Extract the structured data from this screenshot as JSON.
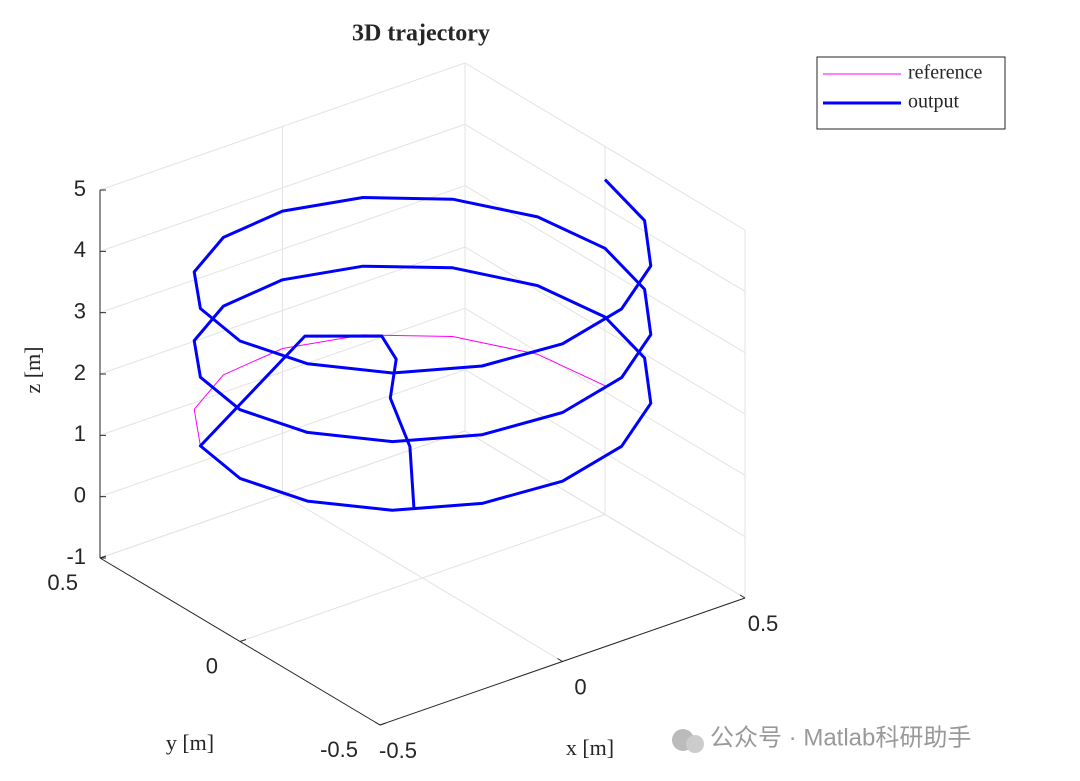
{
  "chart_data": {
    "type": "line3d",
    "title": "3D trajectory",
    "xlabel": "x [m]",
    "ylabel": "y [m]",
    "zlabel": "z [m]",
    "xlim": [
      -0.5,
      0.5
    ],
    "ylim": [
      -0.5,
      0.5
    ],
    "zlim": [
      -1,
      5
    ],
    "xticks": [
      -0.5,
      0,
      0.5
    ],
    "yticks": [
      -0.5,
      0,
      0.5
    ],
    "zticks": [
      -1,
      0,
      1,
      2,
      3,
      4,
      5
    ],
    "grid": true,
    "legend": "upper right",
    "series": [
      {
        "name": "reference",
        "color": "#ff00ff",
        "linewidth": 1,
        "x": [
          0.5,
          0.462,
          0.354,
          0.191,
          0,
          -0.191,
          -0.354,
          -0.462,
          -0.5,
          -0.462,
          -0.354,
          -0.191,
          0,
          0.191,
          0.354,
          0.462,
          0.5,
          0.462,
          0.354,
          0.191,
          0,
          -0.191,
          -0.354,
          -0.462,
          -0.5,
          -0.462,
          -0.354,
          -0.191,
          0,
          0.191,
          0.354,
          0.462,
          0.5,
          0.462,
          0.354,
          0.191,
          0,
          -0.191,
          -0.354,
          -0.462,
          -0.5,
          -0.462,
          -0.354,
          -0.191,
          0,
          0.191,
          0.354,
          0.462,
          0.5
        ],
        "y": [
          0,
          0.191,
          0.354,
          0.462,
          0.5,
          0.462,
          0.354,
          0.191,
          0,
          -0.191,
          -0.354,
          -0.462,
          -0.5,
          -0.462,
          -0.354,
          -0.191,
          0,
          0.191,
          0.354,
          0.462,
          0.5,
          0.462,
          0.354,
          0.191,
          0,
          -0.191,
          -0.354,
          -0.462,
          -0.5,
          -0.462,
          -0.354,
          -0.191,
          0,
          0.191,
          0.354,
          0.462,
          0.5,
          0.462,
          0.354,
          0.191,
          0,
          -0.191,
          -0.354,
          -0.462,
          -0.5,
          -0.462,
          -0.354,
          -0.191,
          0
        ],
        "z": [
          1.1,
          1.17,
          1.24,
          1.31,
          1.38,
          1.45,
          1.52,
          1.59,
          1.66,
          1.73,
          1.8,
          1.87,
          1.94,
          2.01,
          2.08,
          2.15,
          2.22,
          2.29,
          2.36,
          2.43,
          2.5,
          2.57,
          2.64,
          2.71,
          2.78,
          2.85,
          2.92,
          2.99,
          3.06,
          3.13,
          3.2,
          3.27,
          3.34,
          3.41,
          3.48,
          3.55,
          3.62,
          3.69,
          3.76,
          3.83,
          3.9,
          3.97,
          4.04,
          4.11,
          4.18,
          4.25,
          4.32,
          4.39,
          4.46
        ]
      },
      {
        "name": "output",
        "color": "#0000ff",
        "linewidth": 3,
        "x": [
          -0.1,
          -0.05,
          -0.05,
          0.02,
          0.08,
          0,
          -0.462,
          -0.5,
          -0.462,
          -0.354,
          -0.191,
          0,
          0.191,
          0.354,
          0.462,
          0.5,
          0.462,
          0.354,
          0.191,
          0,
          -0.191,
          -0.354,
          -0.462,
          -0.5,
          -0.462,
          -0.354,
          -0.191,
          0,
          0.191,
          0.354,
          0.462,
          0.5,
          0.462,
          0.354,
          0.191,
          0,
          -0.191,
          -0.354,
          -0.462,
          -0.5,
          -0.462,
          -0.354,
          -0.191,
          0,
          0.191,
          0.354,
          0.462,
          0.5
        ],
        "y": [
          -0.1,
          -0.02,
          0.05,
          0.12,
          0.25,
          0.42,
          0.191,
          0,
          -0.191,
          -0.354,
          -0.462,
          -0.5,
          -0.462,
          -0.354,
          -0.191,
          0,
          0.191,
          0.354,
          0.462,
          0.5,
          0.462,
          0.354,
          0.191,
          0,
          -0.191,
          -0.354,
          -0.462,
          -0.5,
          -0.462,
          -0.354,
          -0.191,
          0,
          0.191,
          0.354,
          0.462,
          0.5,
          0.462,
          0.354,
          0.191,
          0,
          -0.191,
          -0.354,
          -0.462,
          -0.5,
          -0.462,
          -0.354,
          -0.191,
          0
        ],
        "z": [
          0.6,
          1.3,
          1.9,
          2.2,
          2.1,
          1.8,
          1.59,
          1.66,
          1.73,
          1.8,
          1.87,
          1.94,
          2.01,
          2.08,
          2.15,
          2.22,
          2.29,
          2.36,
          2.43,
          2.5,
          2.57,
          2.64,
          2.71,
          2.78,
          2.85,
          2.92,
          2.99,
          3.06,
          3.13,
          3.2,
          3.27,
          3.34,
          3.41,
          3.48,
          3.55,
          3.62,
          3.69,
          3.76,
          3.83,
          3.9,
          3.97,
          4.04,
          4.11,
          4.18,
          4.25,
          4.32,
          4.39,
          4.46
        ]
      }
    ]
  },
  "watermark": "公众号 · Matlab科研助手"
}
